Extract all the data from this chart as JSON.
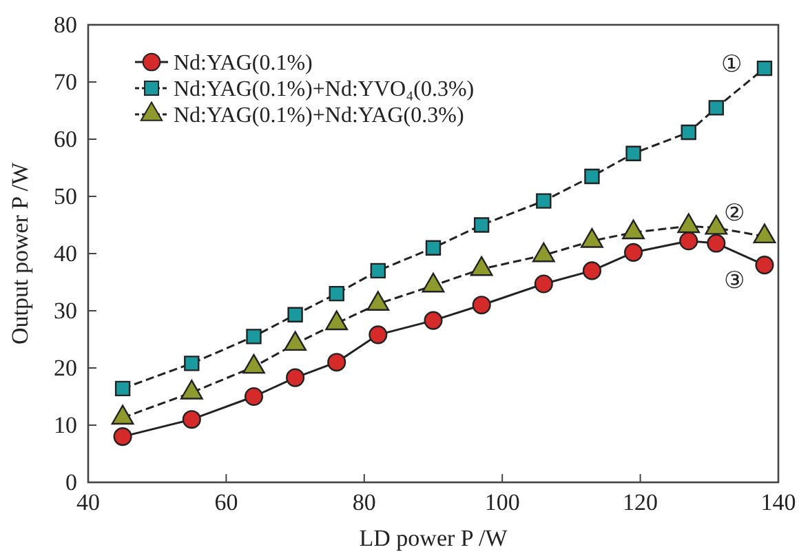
{
  "chart_data": {
    "type": "line",
    "xlabel": "LD power P /W",
    "ylabel": "Output power P /W",
    "x": [
      45,
      55,
      64,
      70,
      76,
      82,
      90,
      97,
      106,
      113,
      119,
      127,
      131,
      138
    ],
    "series": [
      {
        "name": "Nd:YAG(0.1%)",
        "color": "#d42a2a",
        "marker": "circle",
        "line_style": "solid",
        "values": [
          8,
          11,
          15,
          18.3,
          21,
          25.8,
          28.3,
          31,
          34.7,
          37,
          40.2,
          42.2,
          41.8,
          38
        ]
      },
      {
        "name": "Nd:YAG(0.1%)+Nd:YVO₄(0.3%)",
        "color": "#1a9a9e",
        "marker": "square",
        "line_style": "dashed",
        "values": [
          16.4,
          20.8,
          25.5,
          29.3,
          33,
          37,
          41,
          45,
          49.2,
          53.5,
          57.5,
          61.2,
          65.5,
          72.4
        ]
      },
      {
        "name": "Nd:YAG(0.1%)+Nd:YAG(0.3%)",
        "color": "#8f9a2e",
        "marker": "triangle",
        "line_style": "dashed",
        "values": [
          11.3,
          15.7,
          20.2,
          24.2,
          27.8,
          31.2,
          34.4,
          37.3,
          39.7,
          42.2,
          43.7,
          44.8,
          44.5,
          43
        ]
      }
    ],
    "annotations": [
      "①",
      "②",
      "③"
    ],
    "xlim": [
      40,
      140
    ],
    "xticks": [
      40,
      60,
      80,
      100,
      120,
      140
    ],
    "ylim": [
      0,
      80
    ],
    "yticks": [
      0,
      10,
      20,
      30,
      40,
      50,
      60,
      70,
      80
    ],
    "legend": "top left",
    "grid": false
  }
}
